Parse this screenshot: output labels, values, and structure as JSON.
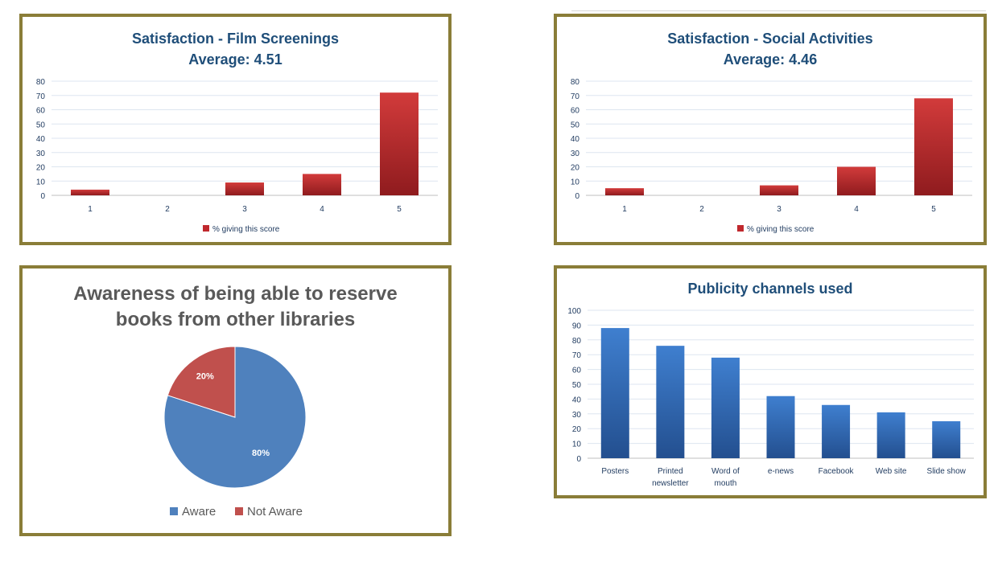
{
  "chart_data": [
    {
      "type": "bar",
      "title": "Satisfaction - Film Screenings",
      "subtitle": "Average: 4.51",
      "categories": [
        "1",
        "2",
        "3",
        "4",
        "5"
      ],
      "series": [
        {
          "name": "% giving this score",
          "values": [
            4,
            0,
            9,
            15,
            72
          ]
        }
      ],
      "yticks": [
        "0",
        "10",
        "20",
        "30",
        "40",
        "50",
        "60",
        "70",
        "80"
      ],
      "ylim": [
        0,
        80
      ],
      "grid": true,
      "legend": "bottom",
      "color": "#c0282d"
    },
    {
      "type": "bar",
      "title": "Satisfaction - Social Activities",
      "subtitle": "Average: 4.46",
      "categories": [
        "1",
        "2",
        "3",
        "4",
        "5"
      ],
      "series": [
        {
          "name": "% giving this score",
          "values": [
            5,
            0,
            7,
            20,
            68
          ]
        }
      ],
      "yticks": [
        "0",
        "10",
        "20",
        "30",
        "40",
        "50",
        "60",
        "70",
        "80"
      ],
      "ylim": [
        0,
        80
      ],
      "grid": true,
      "legend": "bottom",
      "color": "#c0282d"
    },
    {
      "type": "pie",
      "title": "Awareness of being able to reserve books from other libraries",
      "title_lines": [
        "Awareness of being able to reserve",
        "books from other libraries"
      ],
      "categories": [
        "Aware",
        "Not Aware"
      ],
      "values": [
        80,
        20
      ],
      "labels": [
        "80%",
        "20%"
      ],
      "colors": [
        "#4f81bd",
        "#c0504d"
      ],
      "legend": "bottom"
    },
    {
      "type": "bar",
      "title": "Publicity channels used",
      "categories": [
        "Posters",
        "Printed newsletter",
        "Word of mouth",
        "e-news",
        "Facebook",
        "Web site",
        "Slide show"
      ],
      "category_lines": [
        [
          "Posters"
        ],
        [
          "Printed",
          "newsletter"
        ],
        [
          "Word of",
          "mouth"
        ],
        [
          "e-news"
        ],
        [
          "Facebook"
        ],
        [
          "Web site"
        ],
        [
          "Slide show"
        ]
      ],
      "values": [
        88,
        76,
        68,
        42,
        36,
        31,
        25
      ],
      "yticks": [
        "0",
        "10",
        "20",
        "30",
        "40",
        "50",
        "60",
        "70",
        "80",
        "90",
        "100"
      ],
      "ylim": [
        0,
        100
      ],
      "grid": true,
      "color": "#2e64ad"
    }
  ]
}
